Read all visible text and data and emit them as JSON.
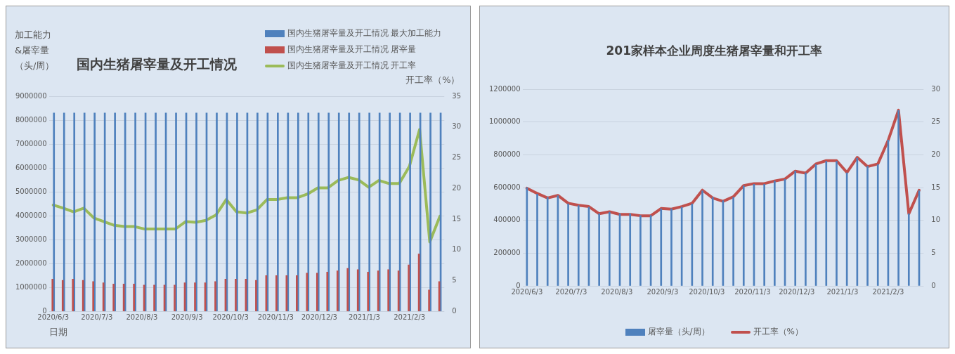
{
  "chart_data": [
    {
      "type": "bar",
      "title": "国内生猪屠宰量及开工情况",
      "ylabel": "加工能力&屠宰量（头/周）",
      "y2label": "开工率（%）",
      "xlabel": "日期",
      "x": [
        "2020-06-03",
        "2020-06-10",
        "2020-06-17",
        "2020-06-24",
        "2020-07-01",
        "2020-07-08",
        "2020-07-15",
        "2020-07-22",
        "2020-07-29",
        "2020-08-05",
        "2020-08-12",
        "2020-08-19",
        "2020-08-26",
        "2020-09-02",
        "2020-09-09",
        "2020-09-16",
        "2020-09-23",
        "2020-09-30",
        "2020-10-07",
        "2020-10-14",
        "2020-10-21",
        "2020-10-28",
        "2020-11-04",
        "2020-11-11",
        "2020-11-18",
        "2020-11-25",
        "2020-12-02",
        "2020-12-09",
        "2020-12-16",
        "2020-12-23",
        "2020-12-30",
        "2021-01-06",
        "2021-01-13",
        "2021-01-20",
        "2021-01-27",
        "2021-02-03",
        "2021-02-10",
        "2021-02-17",
        "2021-02-24"
      ],
      "series": [
        {
          "name": "国内生猪屠宰量及开工情况 最大加工能力",
          "color": "#4f81bd",
          "values": [
            8300000,
            8300000,
            8300000,
            8300000,
            8300000,
            8300000,
            8300000,
            8300000,
            8300000,
            8300000,
            8300000,
            8300000,
            8300000,
            8300000,
            8300000,
            8300000,
            8300000,
            8300000,
            8300000,
            8300000,
            8300000,
            8300000,
            8300000,
            8300000,
            8300000,
            8300000,
            8300000,
            8300000,
            8300000,
            8300000,
            8300000,
            8300000,
            8300000,
            8300000,
            8300000,
            8300000,
            8300000,
            8300000,
            8300000
          ]
        },
        {
          "name": "国内生猪屠宰量及开工情况 屠宰量",
          "color": "#c0504d",
          "values": [
            1350000,
            1300000,
            1350000,
            1300000,
            1250000,
            1200000,
            1150000,
            1150000,
            1150000,
            1100000,
            1100000,
            1100000,
            1100000,
            1200000,
            1200000,
            1200000,
            1250000,
            1350000,
            1350000,
            1350000,
            1300000,
            1500000,
            1500000,
            1500000,
            1500000,
            1600000,
            1600000,
            1650000,
            1700000,
            1800000,
            1750000,
            1650000,
            1700000,
            1750000,
            1700000,
            1950000,
            2400000,
            900000,
            1250000
          ]
        },
        {
          "name": "国内生猪屠宰量及开工情况 开工率",
          "type": "line",
          "axis": "y2",
          "color": "#9bbb59",
          "values": [
            17.3,
            16.8,
            16.2,
            16.8,
            15.2,
            14.6,
            14.0,
            13.8,
            13.8,
            13.4,
            13.4,
            13.4,
            13.4,
            14.6,
            14.5,
            14.8,
            15.7,
            18.2,
            16.2,
            16.0,
            16.5,
            18.2,
            18.2,
            18.5,
            18.5,
            19.1,
            20.1,
            20.1,
            21.3,
            21.8,
            21.4,
            20.2,
            21.3,
            20.8,
            20.8,
            23.6,
            29.6,
            11.3,
            15.5
          ]
        }
      ],
      "xlim": [
        "2020-05-31",
        "2021-02-27"
      ],
      "xticks": [
        {
          "value": "2020-06-03",
          "label": "2020/6/3"
        },
        {
          "value": "2020-07-03",
          "label": "2020/7/3"
        },
        {
          "value": "2020-08-03",
          "label": "2020/8/3"
        },
        {
          "value": "2020-09-03",
          "label": "2020/9/3"
        },
        {
          "value": "2020-10-03",
          "label": "2020/10/3"
        },
        {
          "value": "2020-11-03",
          "label": "2020/11/3"
        },
        {
          "value": "2020-12-03",
          "label": "2020/12/3"
        },
        {
          "value": "2021-01-03",
          "label": "2021/1/3"
        },
        {
          "value": "2021-02-03",
          "label": "2021/2/3"
        }
      ],
      "ylim": [
        0,
        9000000
      ],
      "yticks": [
        0,
        1000000,
        2000000,
        3000000,
        4000000,
        5000000,
        6000000,
        7000000,
        8000000,
        9000000
      ],
      "y2lim": [
        0,
        35
      ],
      "y2ticks": [
        0,
        5,
        10,
        15,
        20,
        25,
        30,
        35
      ],
      "grid": "y",
      "legend": "top right",
      "marker": "none"
    },
    {
      "type": "bar",
      "title": "201家样本企业周度生猪屠宰量和开工率",
      "x": [
        "2020-06-03",
        "2020-06-10",
        "2020-06-17",
        "2020-06-24",
        "2020-07-01",
        "2020-07-08",
        "2020-07-15",
        "2020-07-22",
        "2020-07-29",
        "2020-08-05",
        "2020-08-12",
        "2020-08-19",
        "2020-08-26",
        "2020-09-02",
        "2020-09-09",
        "2020-09-16",
        "2020-09-23",
        "2020-09-30",
        "2020-10-07",
        "2020-10-14",
        "2020-10-21",
        "2020-10-28",
        "2020-11-04",
        "2020-11-11",
        "2020-11-18",
        "2020-11-25",
        "2020-12-02",
        "2020-12-09",
        "2020-12-16",
        "2020-12-23",
        "2020-12-30",
        "2021-01-06",
        "2021-01-13",
        "2021-01-20",
        "2021-01-27",
        "2021-02-03",
        "2021-02-10",
        "2021-02-17",
        "2021-02-24"
      ],
      "series": [
        {
          "name": "屠宰量（头/周）",
          "color": "#4f81bd",
          "values": [
            600000,
            560000,
            540000,
            550000,
            500000,
            490000,
            480000,
            440000,
            450000,
            440000,
            440000,
            430000,
            430000,
            470000,
            470000,
            480000,
            500000,
            580000,
            540000,
            520000,
            540000,
            610000,
            620000,
            620000,
            640000,
            650000,
            700000,
            690000,
            740000,
            760000,
            760000,
            690000,
            780000,
            730000,
            740000,
            890000,
            1070000,
            440000,
            580000
          ]
        },
        {
          "name": "开工率（%）",
          "type": "line",
          "axis": "y2",
          "color": "#c0504d",
          "values": [
            14.9,
            14.1,
            13.4,
            13.8,
            12.6,
            12.3,
            12.1,
            11.0,
            11.3,
            10.9,
            10.9,
            10.7,
            10.7,
            11.8,
            11.7,
            12.1,
            12.6,
            14.6,
            13.4,
            12.9,
            13.6,
            15.3,
            15.6,
            15.6,
            16.0,
            16.3,
            17.5,
            17.2,
            18.6,
            19.1,
            19.1,
            17.3,
            19.6,
            18.2,
            18.6,
            22.2,
            26.8,
            11.0,
            14.6
          ]
        }
      ],
      "xlim": [
        "2020-05-31",
        "2021-02-27"
      ],
      "xticks": [
        {
          "value": "2020-06-03",
          "label": "2020/6/3"
        },
        {
          "value": "2020-07-03",
          "label": "2020/7/3"
        },
        {
          "value": "2020-08-03",
          "label": "2020/8/3"
        },
        {
          "value": "2020-09-03",
          "label": "2020/9/3"
        },
        {
          "value": "2020-10-03",
          "label": "2020/10/3"
        },
        {
          "value": "2020-11-03",
          "label": "2020/11/3"
        },
        {
          "value": "2020-12-03",
          "label": "2020/12/3"
        },
        {
          "value": "2021-01-03",
          "label": "2021/1/3"
        },
        {
          "value": "2021-02-03",
          "label": "2021/2/3"
        }
      ],
      "ylim": [
        0,
        1200000
      ],
      "yticks": [
        0,
        200000,
        400000,
        600000,
        800000,
        1000000,
        1200000
      ],
      "y2lim": [
        0,
        30
      ],
      "y2ticks": [
        0,
        5,
        10,
        15,
        20,
        25,
        30
      ],
      "grid": "y",
      "legend": "bottom",
      "marker": "none"
    }
  ]
}
